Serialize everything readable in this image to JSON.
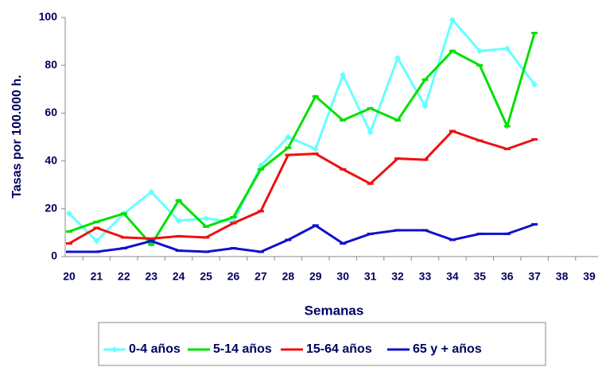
{
  "chart_data": {
    "type": "line",
    "x_label": "Semanas",
    "y_label": "Tasas por 100.000 h.",
    "categories": [
      "20",
      "21",
      "22",
      "23",
      "24",
      "25",
      "26",
      "27",
      "28",
      "29",
      "30",
      "31",
      "32",
      "33",
      "34",
      "35",
      "36",
      "37",
      "38",
      "39"
    ],
    "series": [
      {
        "name": "0-4 años",
        "color": "#66ffff",
        "values": [
          18,
          6.5,
          18,
          27,
          15,
          16,
          14.5,
          38,
          50,
          45,
          76,
          52,
          83,
          63,
          99,
          86,
          87,
          72,
          null,
          null
        ]
      },
      {
        "name": "5-14 años",
        "color": "#00e000",
        "values": [
          10.5,
          14.5,
          18,
          5,
          23.5,
          12.5,
          16.5,
          36.5,
          45.5,
          67,
          57,
          62,
          57,
          74,
          86,
          80,
          54.5,
          93.5,
          null,
          null
        ]
      },
      {
        "name": "15-64 años",
        "color": "#ee1111",
        "values": [
          5.5,
          12,
          8,
          7.5,
          8.5,
          8,
          14,
          19,
          42.5,
          43,
          36.5,
          30.5,
          41,
          40.5,
          52.5,
          48.5,
          45,
          49,
          null,
          null
        ]
      },
      {
        "name": "65 y + años",
        "color": "#1111cc",
        "values": [
          2,
          2,
          3.5,
          6.5,
          2.5,
          2,
          3.5,
          2,
          7,
          13,
          5.5,
          9.5,
          11,
          11,
          7,
          9.5,
          9.5,
          13.5,
          null,
          null
        ]
      }
    ],
    "ylim": [
      0,
      100
    ],
    "yticks": [
      0,
      20,
      40,
      60,
      80,
      100
    ]
  }
}
